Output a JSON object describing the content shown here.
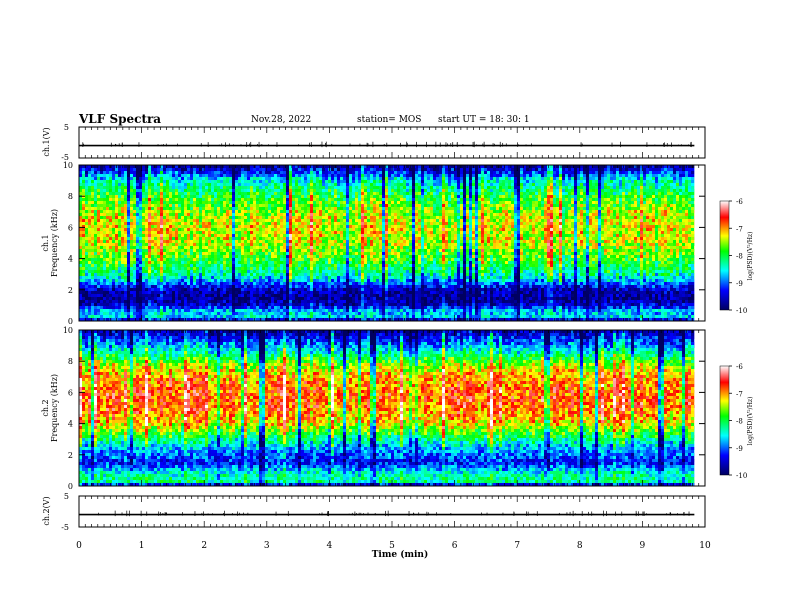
{
  "header": {
    "title": "VLF Spectra",
    "date": "Nov.28, 2022",
    "station": "station= MOS",
    "start_ut": "start UT = 18: 30: 1"
  },
  "chart_data": [
    {
      "type": "line",
      "name": "ch1-waveform",
      "ylabel": "ch.1(V)",
      "ylim": [
        -5,
        5
      ],
      "yticks": [
        "5",
        "-5"
      ],
      "x": [
        0,
        9.83
      ],
      "values": [
        -1.0,
        -1.0
      ]
    },
    {
      "type": "heatmap",
      "name": "ch1-spectrogram",
      "ylabel_lines": [
        "ch.1",
        "Frequency (kHz)"
      ],
      "ylim": [
        0,
        10
      ],
      "yticks": [
        "0",
        "2",
        "4",
        "6",
        "8",
        "10"
      ],
      "xlim": [
        0,
        10
      ],
      "x_end": 9.83,
      "colorbar": {
        "label": "log(PSD)(V²/Hz)",
        "range": [
          -10,
          -6
        ],
        "ticks": [
          "-6",
          "-7",
          "-8",
          "-9",
          "-10"
        ]
      },
      "freq_profile": [
        {
          "f": 0.0,
          "v": -9.6
        },
        {
          "f": 0.3,
          "v": -8.6
        },
        {
          "f": 0.7,
          "v": -8.8
        },
        {
          "f": 1.0,
          "v": -9.5
        },
        {
          "f": 1.5,
          "v": -9.8
        },
        {
          "f": 2.0,
          "v": -9.6
        },
        {
          "f": 2.5,
          "v": -8.9
        },
        {
          "f": 3.0,
          "v": -8.3
        },
        {
          "f": 4.0,
          "v": -7.8
        },
        {
          "f": 5.0,
          "v": -7.4
        },
        {
          "f": 6.0,
          "v": -7.3
        },
        {
          "f": 7.0,
          "v": -7.5
        },
        {
          "f": 8.0,
          "v": -7.9
        },
        {
          "f": 9.0,
          "v": -8.5
        },
        {
          "f": 9.5,
          "v": -9.2
        },
        {
          "f": 10.0,
          "v": -9.8
        }
      ]
    },
    {
      "type": "heatmap",
      "name": "ch2-spectrogram",
      "ylabel_lines": [
        "ch.2",
        "Frequency (kHz)"
      ],
      "ylim": [
        0,
        10
      ],
      "yticks": [
        "0",
        "2",
        "4",
        "6",
        "8",
        "10"
      ],
      "xlim": [
        0,
        10
      ],
      "x_end": 9.83,
      "colorbar": {
        "label": "log(PSD)(V²/Hz)",
        "range": [
          -10,
          -6
        ],
        "ticks": [
          "-6",
          "-7",
          "-8",
          "-9",
          "-10"
        ]
      },
      "freq_profile": [
        {
          "f": 0.0,
          "v": -9.7
        },
        {
          "f": 0.3,
          "v": -8.2
        },
        {
          "f": 0.8,
          "v": -8.4
        },
        {
          "f": 1.5,
          "v": -9.3
        },
        {
          "f": 2.5,
          "v": -8.7
        },
        {
          "f": 3.2,
          "v": -8.0
        },
        {
          "f": 4.0,
          "v": -7.2
        },
        {
          "f": 5.0,
          "v": -6.8
        },
        {
          "f": 6.0,
          "v": -6.8
        },
        {
          "f": 7.0,
          "v": -7.0
        },
        {
          "f": 7.8,
          "v": -7.5
        },
        {
          "f": 8.5,
          "v": -8.3
        },
        {
          "f": 9.2,
          "v": -9.0
        },
        {
          "f": 10.0,
          "v": -9.7
        }
      ]
    },
    {
      "type": "line",
      "name": "ch2-waveform",
      "ylabel": "ch.2(V)",
      "ylim": [
        -5,
        5
      ],
      "yticks": [
        "5",
        "-5"
      ],
      "x": [
        0,
        9.83
      ],
      "values": [
        -1.0,
        -1.0
      ]
    }
  ],
  "x_axis": {
    "label": "Time (min)",
    "ticks": [
      "0",
      "1",
      "2",
      "3",
      "4",
      "5",
      "6",
      "7",
      "8",
      "9",
      "10"
    ]
  }
}
